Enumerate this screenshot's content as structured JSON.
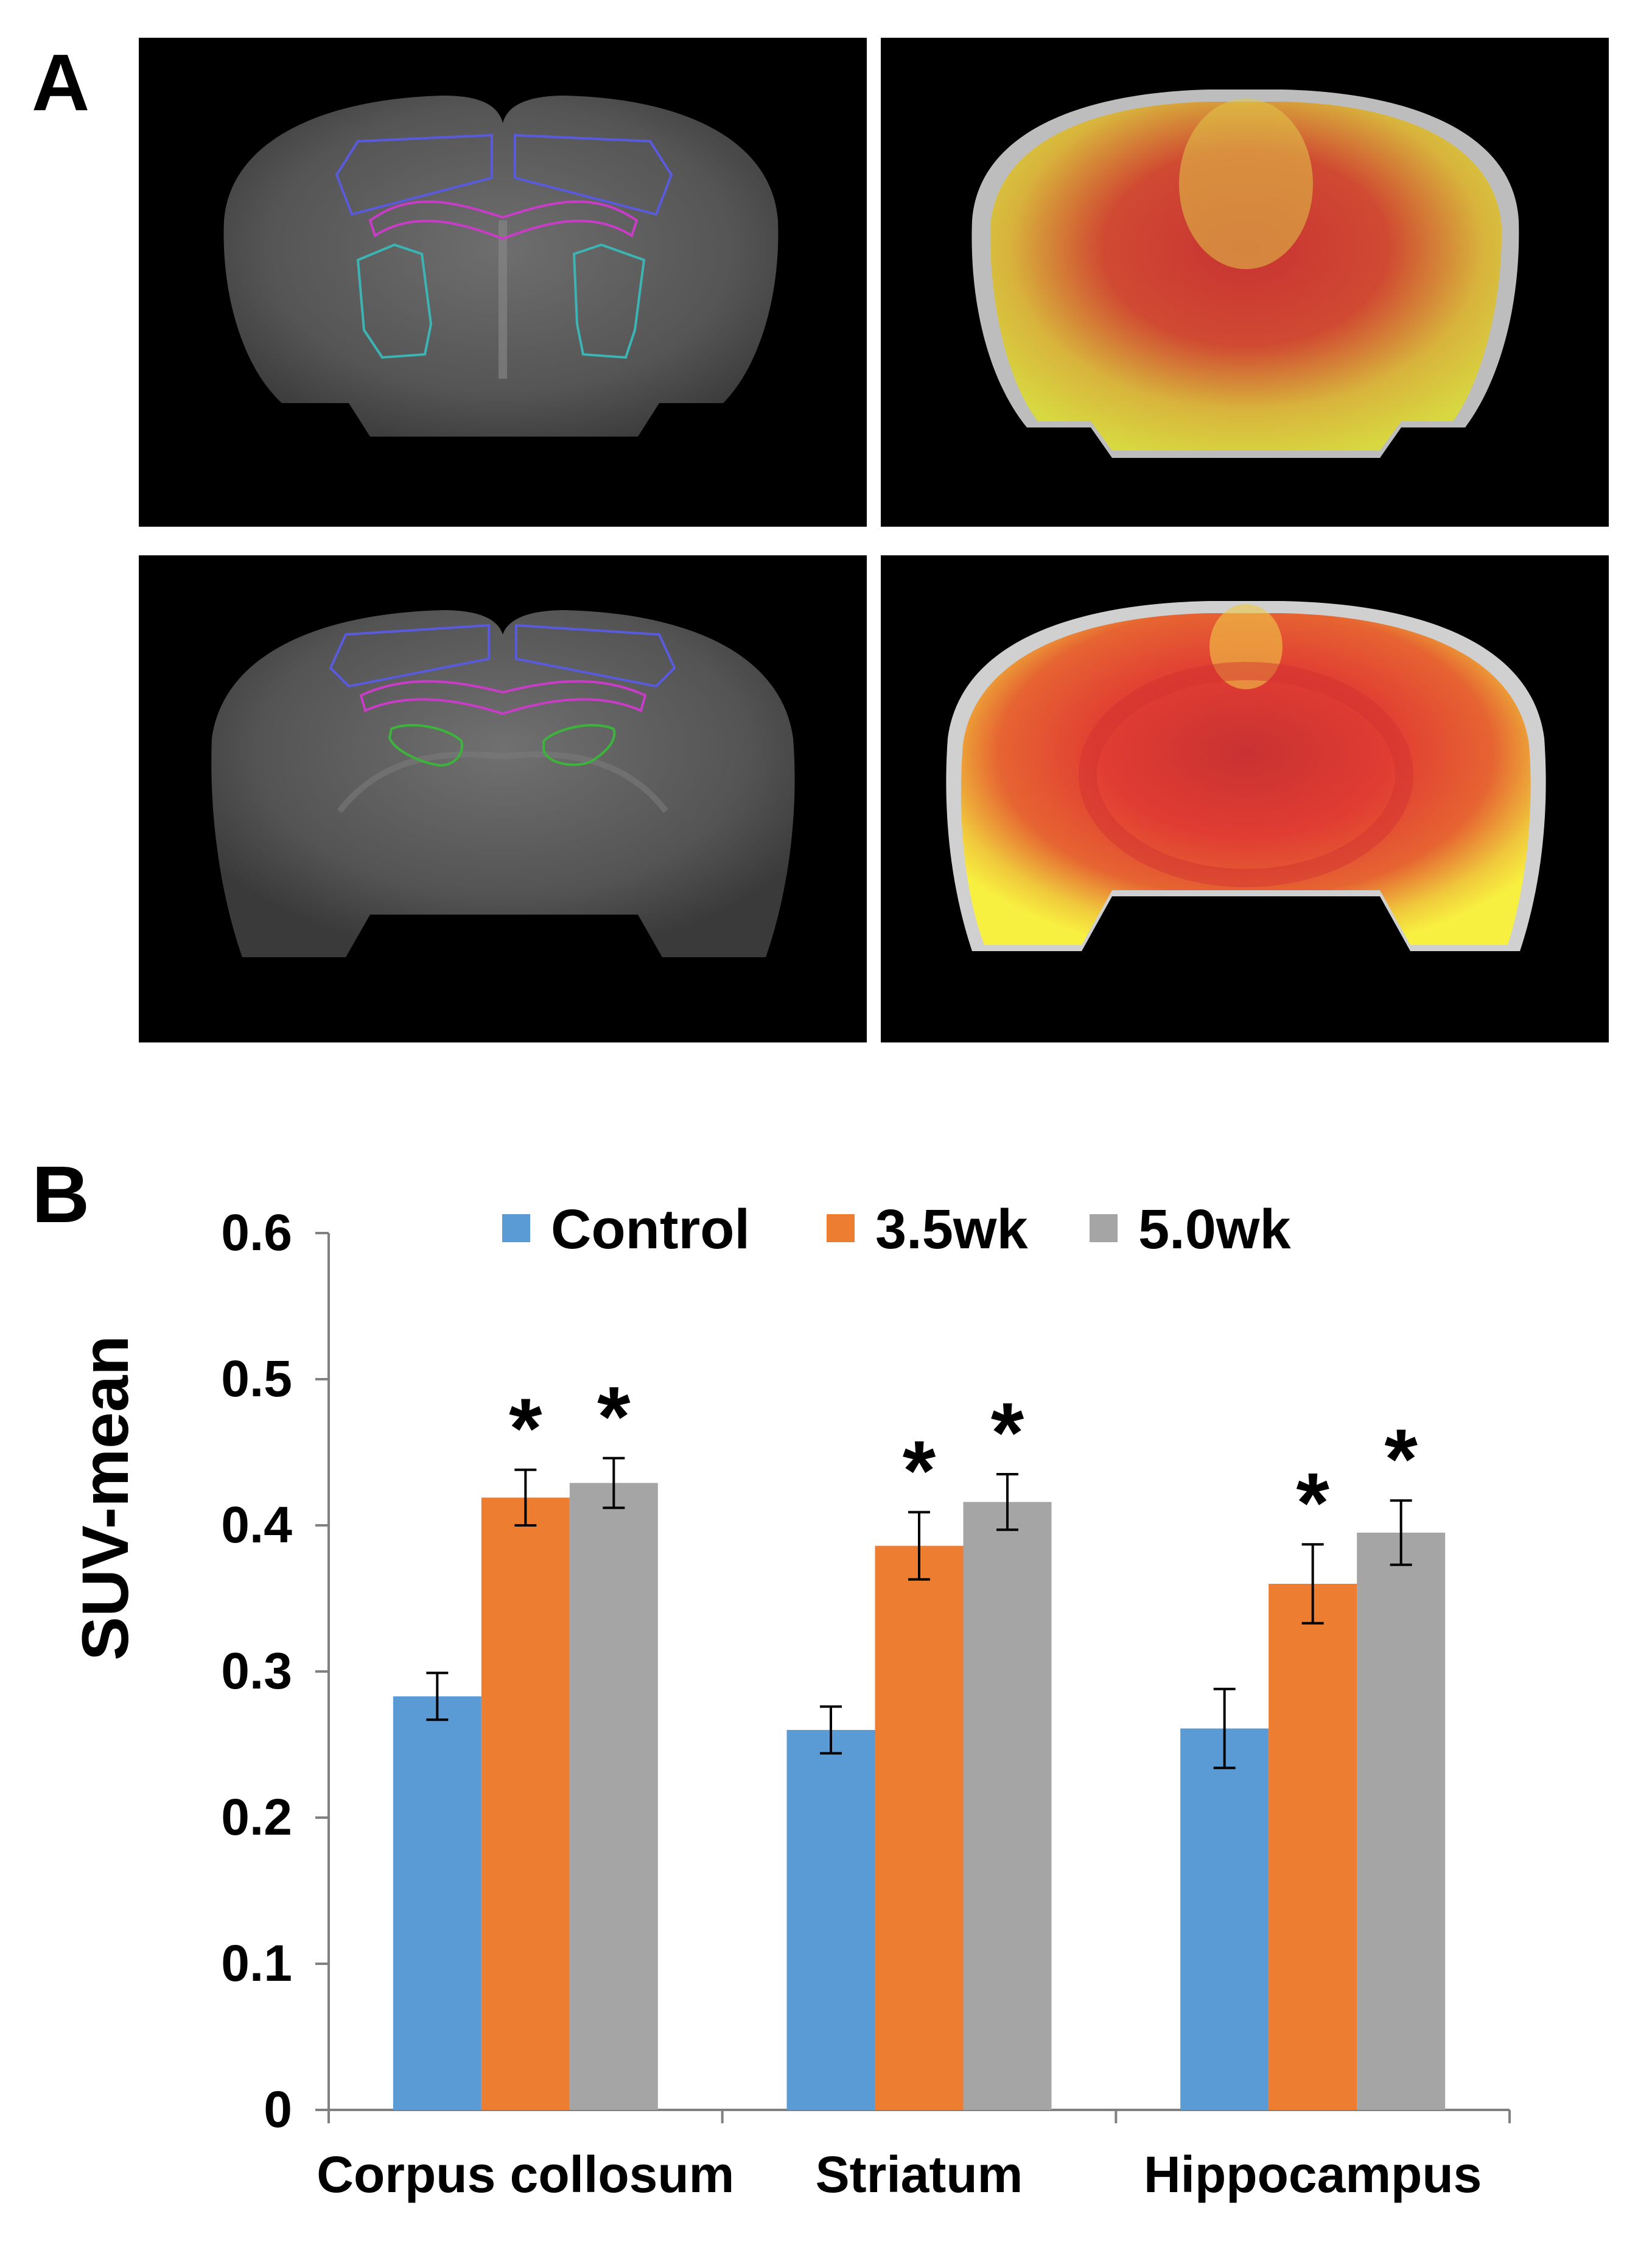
{
  "panel_a": {
    "label": "A"
  },
  "panel_b": {
    "label": "B"
  },
  "colors": {
    "control": "#5b9bd5",
    "wk35": "#ed7d31",
    "wk50": "#a5a5a5",
    "roi_cortex": "#5a5adc",
    "roi_cc": "#c83cc8",
    "roi_striatum": "#3cb4b4",
    "roi_hippocampus": "#3cb43c"
  },
  "chart_data": {
    "type": "bar",
    "title": "",
    "xlabel": "",
    "ylabel": "SUV-mean",
    "ylim": [
      0,
      0.6
    ],
    "yticks": [
      "0",
      "0.1",
      "0.2",
      "0.3",
      "0.4",
      "0.5",
      "0.6"
    ],
    "categories": [
      "Corpus collosum",
      "Striatum",
      "Hippocampus"
    ],
    "legend_position": "top",
    "series": [
      {
        "name": "Control",
        "values": [
          0.283,
          0.26,
          0.261
        ],
        "errors": [
          0.016,
          0.016,
          0.027
        ],
        "significance": [
          "",
          "",
          ""
        ]
      },
      {
        "name": "3.5wk",
        "values": [
          0.419,
          0.386,
          0.36
        ],
        "errors": [
          0.019,
          0.023,
          0.027
        ],
        "significance": [
          "*",
          "*",
          "*"
        ]
      },
      {
        "name": "5.0wk",
        "values": [
          0.429,
          0.416,
          0.395
        ],
        "errors": [
          0.017,
          0.019,
          0.022
        ],
        "significance": [
          "*",
          "*",
          "*"
        ]
      }
    ]
  }
}
